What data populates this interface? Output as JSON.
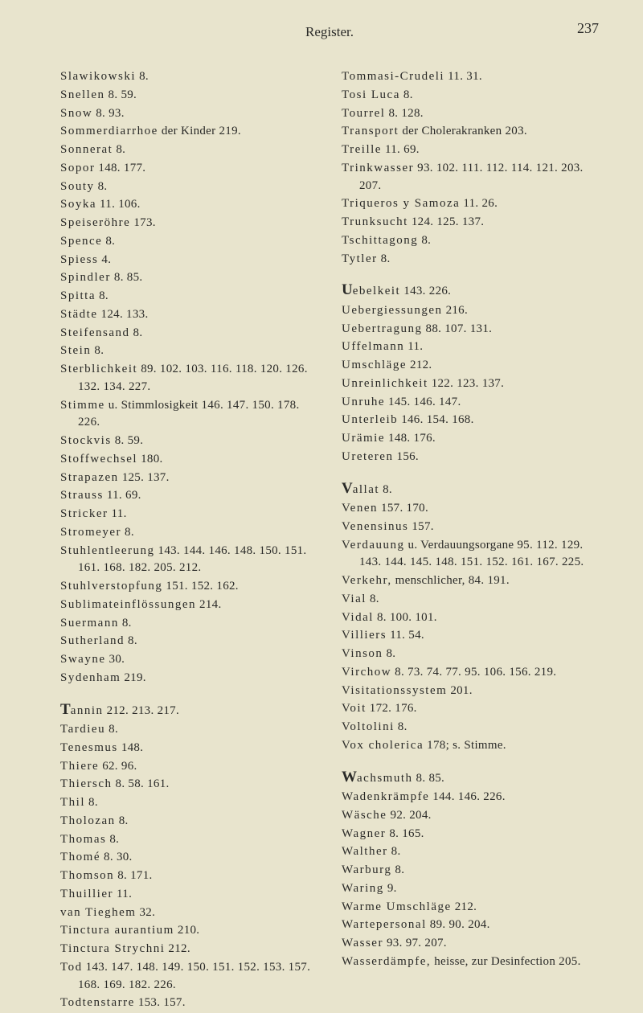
{
  "header": {
    "title": "Register.",
    "page_number": "237"
  },
  "left_column": [
    {
      "term": "Slawikowski",
      "pages": " 8."
    },
    {
      "term": "Snellen",
      "pages": " 8. 59."
    },
    {
      "term": "Snow",
      "pages": " 8. 93."
    },
    {
      "term": "Sommerdiarrhoe",
      "pages": " der Kinder 219."
    },
    {
      "term": "Sonnerat",
      "pages": " 8."
    },
    {
      "term": "Sopor",
      "pages": " 148. 177."
    },
    {
      "term": "Souty",
      "pages": " 8."
    },
    {
      "term": "Soyka",
      "pages": " 11. 106."
    },
    {
      "term": "Speiseröhre",
      "pages": " 173."
    },
    {
      "term": "Spence",
      "pages": " 8."
    },
    {
      "term": "Spiess",
      "pages": " 4."
    },
    {
      "term": "Spindler",
      "pages": " 8. 85."
    },
    {
      "term": "Spitta",
      "pages": " 8."
    },
    {
      "term": "Städte",
      "pages": " 124. 133."
    },
    {
      "term": "Steifensand",
      "pages": " 8."
    },
    {
      "term": "Stein",
      "pages": " 8."
    },
    {
      "term": "Sterblichkeit",
      "pages": " 89. 102. 103. 116. 118. 120. 126. 132. 134. 227.",
      "hanging": true
    },
    {
      "term": "Stimme",
      "pages": " u. Stimmlosigkeit 146. 147. 150. 178. 226.",
      "hanging": true
    },
    {
      "term": "Stockvis",
      "pages": " 8. 59."
    },
    {
      "term": "Stoffwechsel",
      "pages": " 180."
    },
    {
      "term": "Strapazen",
      "pages": " 125. 137."
    },
    {
      "term": "Strauss",
      "pages": " 11. 69."
    },
    {
      "term": "Stricker",
      "pages": " 11."
    },
    {
      "term": "Stromeyer",
      "pages": " 8."
    },
    {
      "term": "Stuhlentleerung",
      "pages": " 143. 144. 146. 148. 150. 151. 161. 168. 182. 205. 212.",
      "hanging": true
    },
    {
      "term": "Stuhlverstopfung",
      "pages": " 151. 152. 162."
    },
    {
      "term": "Sublimateinflössungen",
      "pages": " 214."
    },
    {
      "term": "Suermann",
      "pages": " 8."
    },
    {
      "term": "Sutherland",
      "pages": " 8."
    },
    {
      "term": "Swayne",
      "pages": " 30."
    },
    {
      "term": "Sydenham",
      "pages": " 219."
    },
    {
      "term": "Tannin",
      "pages": " 212. 213. 217.",
      "gap": true,
      "initial": "T",
      "rest": "annin"
    },
    {
      "term": "Tardieu",
      "pages": " 8."
    },
    {
      "term": "Tenesmus",
      "pages": " 148."
    },
    {
      "term": "Thiere",
      "pages": " 62. 96."
    },
    {
      "term": "Thiersch",
      "pages": " 8. 58. 161."
    },
    {
      "term": "Thil",
      "pages": " 8."
    },
    {
      "term": "Tholozan",
      "pages": " 8."
    },
    {
      "term": "Thomas",
      "pages": " 8."
    },
    {
      "term": "Thomé",
      "pages": " 8. 30."
    },
    {
      "term": "Thomson",
      "pages": " 8. 171."
    },
    {
      "term": "Thuillier",
      "pages": " 11."
    },
    {
      "term": "van Tieghem",
      "pages": " 32."
    },
    {
      "term": "Tinctura aurantium",
      "pages": " 210."
    },
    {
      "term": "Tinctura Strychni",
      "pages": " 212."
    },
    {
      "term": "Tod",
      "pages": " 143. 147. 148. 149. 150. 151. 152. 153. 157. 168. 169. 182. 226.",
      "hanging": true
    },
    {
      "term": "Todtenstarre",
      "pages": " 153. 157."
    }
  ],
  "right_column": [
    {
      "term": "Tommasi-Crudeli",
      "pages": " 11. 31."
    },
    {
      "term": "Tosi Luca",
      "pages": " 8."
    },
    {
      "term": "Tourrel",
      "pages": " 8. 128."
    },
    {
      "term": "Transport",
      "pages": " der Cholerakranken 203."
    },
    {
      "term": "Treille",
      "pages": " 11. 69."
    },
    {
      "term": "Trinkwasser",
      "pages": " 93. 102. 111. 112. 114. 121. 203. 207.",
      "hanging": true
    },
    {
      "term": "Triqueros y Samoza",
      "pages": " 11. 26."
    },
    {
      "term": "Trunksucht",
      "pages": " 124. 125. 137."
    },
    {
      "term": "Tschittagong",
      "pages": " 8."
    },
    {
      "term": "Tytler",
      "pages": " 8."
    },
    {
      "term": "Uebelkeit",
      "pages": " 143. 226.",
      "gap": true,
      "initial": "U",
      "rest": "ebelkeit"
    },
    {
      "term": "Uebergiessungen",
      "pages": " 216."
    },
    {
      "term": "Uebertragung",
      "pages": " 88. 107. 131."
    },
    {
      "term": "Uffelmann",
      "pages": " 11."
    },
    {
      "term": "Umschläge",
      "pages": " 212."
    },
    {
      "term": "Unreinlichkeit",
      "pages": " 122. 123. 137."
    },
    {
      "term": "Unruhe",
      "pages": " 145. 146. 147."
    },
    {
      "term": "Unterleib",
      "pages": " 146. 154. 168."
    },
    {
      "term": "Urämie",
      "pages": " 148. 176."
    },
    {
      "term": "Ureteren",
      "pages": " 156."
    },
    {
      "term": "Vallat",
      "pages": " 8.",
      "gap": true,
      "initial": "V",
      "rest": "allat"
    },
    {
      "term": "Venen",
      "pages": " 157. 170."
    },
    {
      "term": "Venensinus",
      "pages": " 157."
    },
    {
      "term": "Verdauung",
      "pages": " u. Verdauungsorgane 95. 112. 129. 143. 144. 145. 148. 151. 152. 161. 167. 225.",
      "hanging": true
    },
    {
      "term": "Verkehr,",
      "pages": " menschlicher, 84. 191."
    },
    {
      "term": "Vial",
      "pages": " 8."
    },
    {
      "term": "Vidal",
      "pages": " 8. 100. 101."
    },
    {
      "term": "Villiers",
      "pages": " 11. 54."
    },
    {
      "term": "Vinson",
      "pages": " 8."
    },
    {
      "term": "Virchow",
      "pages": " 8. 73. 74. 77. 95. 106. 156. 219.",
      "hanging": true
    },
    {
      "term": "Visitationssystem",
      "pages": " 201."
    },
    {
      "term": "Voit",
      "pages": " 172. 176."
    },
    {
      "term": "Voltolini",
      "pages": " 8."
    },
    {
      "term": "Vox cholerica",
      "pages": " 178; s. Stimme."
    },
    {
      "term": "Wachsmuth",
      "pages": " 8. 85.",
      "gap": true,
      "initial": "W",
      "rest": "achsmuth"
    },
    {
      "term": "Wadenkrämpfe",
      "pages": " 144. 146. 226."
    },
    {
      "term": "Wäsche",
      "pages": " 92. 204."
    },
    {
      "term": "Wagner",
      "pages": " 8. 165."
    },
    {
      "term": "Walther",
      "pages": " 8."
    },
    {
      "term": "Warburg",
      "pages": " 8."
    },
    {
      "term": "Waring",
      "pages": " 9."
    },
    {
      "term": "Warme Umschläge",
      "pages": " 212."
    },
    {
      "term": "Wartepersonal",
      "pages": " 89. 90. 204."
    },
    {
      "term": "Wasser",
      "pages": " 93. 97. 207."
    },
    {
      "term": "Wasserdämpfe,",
      "pages": " heisse, zur Desinfection 205.",
      "hanging": true
    }
  ]
}
